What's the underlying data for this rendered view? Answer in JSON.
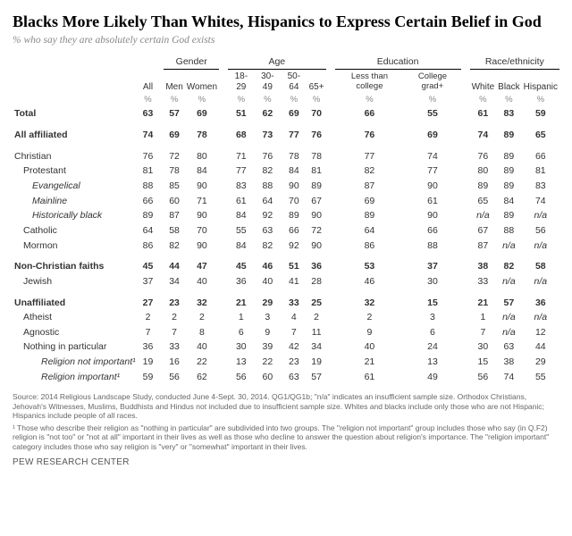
{
  "header": {
    "title": "Blacks More Likely Than Whites, Hispanics to Express Certain Belief in God",
    "subtitle": "% who say they are absolutely certain God exists"
  },
  "table": {
    "group_headers": [
      "Gender",
      "Age",
      "Education",
      "Race/ethnicity"
    ],
    "col_headers": [
      "All",
      "Men",
      "Women",
      "18-29",
      "30-49",
      "50-64",
      "65+",
      "Less than college",
      "College grad+",
      "White",
      "Black",
      "Hispanic"
    ],
    "pct_label": "%",
    "rows": [
      {
        "label": "Total",
        "bold": true,
        "indent": 0,
        "vals": [
          "63",
          "57",
          "69",
          "51",
          "62",
          "69",
          "70",
          "66",
          "55",
          "61",
          "83",
          "59"
        ]
      },
      {
        "label": "All affiliated",
        "bold": true,
        "indent": 0,
        "vals": [
          "74",
          "69",
          "78",
          "68",
          "73",
          "77",
          "76",
          "76",
          "69",
          "74",
          "89",
          "65"
        ]
      },
      {
        "label": "Christian",
        "bold": false,
        "indent": 0,
        "vals": [
          "76",
          "72",
          "80",
          "71",
          "76",
          "78",
          "78",
          "77",
          "74",
          "76",
          "89",
          "66"
        ]
      },
      {
        "label": "Protestant",
        "bold": false,
        "indent": 1,
        "vals": [
          "81",
          "78",
          "84",
          "77",
          "82",
          "84",
          "81",
          "82",
          "77",
          "80",
          "89",
          "81"
        ]
      },
      {
        "label": "Evangelical",
        "bold": false,
        "indent": 2,
        "italic": true,
        "vals": [
          "88",
          "85",
          "90",
          "83",
          "88",
          "90",
          "89",
          "87",
          "90",
          "89",
          "89",
          "83"
        ]
      },
      {
        "label": "Mainline",
        "bold": false,
        "indent": 2,
        "italic": true,
        "vals": [
          "66",
          "60",
          "71",
          "61",
          "64",
          "70",
          "67",
          "69",
          "61",
          "65",
          "84",
          "74"
        ]
      },
      {
        "label": "Historically black",
        "bold": false,
        "indent": 2,
        "italic": true,
        "vals": [
          "89",
          "87",
          "90",
          "84",
          "92",
          "89",
          "90",
          "89",
          "90",
          "n/a",
          "89",
          "n/a"
        ]
      },
      {
        "label": "Catholic",
        "bold": false,
        "indent": 1,
        "vals": [
          "64",
          "58",
          "70",
          "55",
          "63",
          "66",
          "72",
          "64",
          "66",
          "67",
          "88",
          "56"
        ]
      },
      {
        "label": "Mormon",
        "bold": false,
        "indent": 1,
        "vals": [
          "86",
          "82",
          "90",
          "84",
          "82",
          "92",
          "90",
          "86",
          "88",
          "87",
          "n/a",
          "n/a"
        ]
      },
      {
        "label": "Non-Christian faiths",
        "bold": true,
        "indent": 0,
        "vals": [
          "45",
          "44",
          "47",
          "45",
          "46",
          "51",
          "36",
          "53",
          "37",
          "38",
          "82",
          "58"
        ]
      },
      {
        "label": "Jewish",
        "bold": false,
        "indent": 1,
        "vals": [
          "37",
          "34",
          "40",
          "36",
          "40",
          "41",
          "28",
          "46",
          "30",
          "33",
          "n/a",
          "n/a"
        ]
      },
      {
        "label": "Unaffiliated",
        "bold": true,
        "indent": 0,
        "vals": [
          "27",
          "23",
          "32",
          "21",
          "29",
          "33",
          "25",
          "32",
          "15",
          "21",
          "57",
          "36"
        ]
      },
      {
        "label": "Atheist",
        "bold": false,
        "indent": 1,
        "vals": [
          "2",
          "2",
          "2",
          "1",
          "3",
          "4",
          "2",
          "2",
          "3",
          "1",
          "n/a",
          "n/a"
        ]
      },
      {
        "label": "Agnostic",
        "bold": false,
        "indent": 1,
        "vals": [
          "7",
          "7",
          "8",
          "6",
          "9",
          "7",
          "11",
          "9",
          "6",
          "7",
          "n/a",
          "12"
        ]
      },
      {
        "label": "Nothing in particular",
        "bold": false,
        "indent": 1,
        "vals": [
          "36",
          "33",
          "40",
          "30",
          "39",
          "42",
          "34",
          "40",
          "24",
          "30",
          "63",
          "44"
        ]
      },
      {
        "label": "Religion not important¹",
        "bold": false,
        "indent": 3,
        "vals": [
          "19",
          "16",
          "22",
          "13",
          "22",
          "23",
          "19",
          "21",
          "13",
          "15",
          "38",
          "29"
        ]
      },
      {
        "label": "Religion important¹",
        "bold": false,
        "indent": 3,
        "vals": [
          "59",
          "56",
          "62",
          "56",
          "60",
          "63",
          "57",
          "61",
          "49",
          "56",
          "74",
          "55"
        ]
      }
    ]
  },
  "footnotes": {
    "source": "Source: 2014 Religious Landscape Study, conducted June 4-Sept. 30, 2014. QG1/QG1b; \"n/a\" indicates an insufficient sample size. Orthodox Christians, Jehovah's Witnesses, Muslims, Buddhists and Hindus not included due to insufficient sample size. Whites and blacks include only those who are not Hispanic; Hispanics include people of all races.",
    "note": "¹ Those who describe their religion as \"nothing in particular\" are subdivided into two groups. The \"religion not important\" group includes those who say (in Q.F2) religion is \"not too\" or \"not at all\" important in their lives as well as those who decline to answer the question about religion's importance. The \"religion important\" category includes those who say religion is \"very\" or \"somewhat\" important in their lives.",
    "brand": "PEW RESEARCH CENTER"
  }
}
